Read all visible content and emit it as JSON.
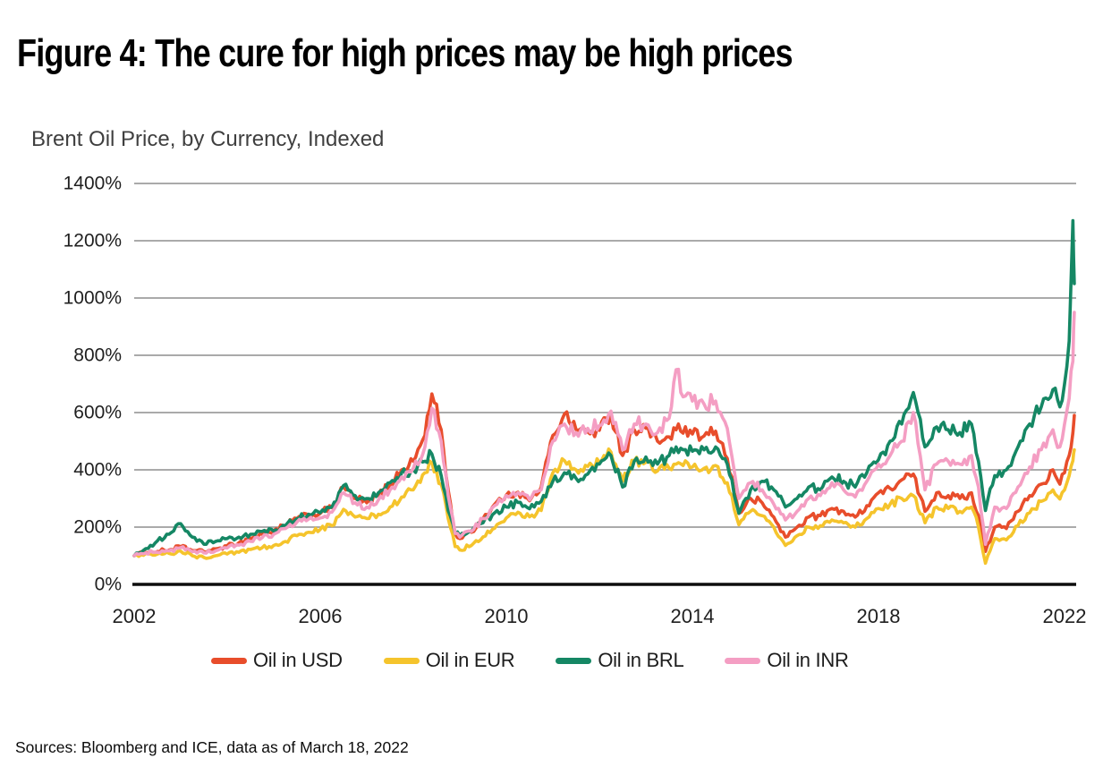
{
  "figure_title": "Figure 4: The cure for high prices may be high prices",
  "sources_line": "Sources: Bloomberg and ICE, data as of March 18, 2022",
  "colors": {
    "usd": "#E84D2B",
    "eur": "#F5C42C",
    "brl": "#158764",
    "inr": "#F49EC3",
    "gridline": "#9e9e9e",
    "axis": "#0d0d0d",
    "tick_text": "#1f1f1f"
  },
  "legend": [
    {
      "label": "Oil in USD",
      "color": "#E84D2B"
    },
    {
      "label": "Oil in EUR",
      "color": "#F5C42C"
    },
    {
      "label": "Oil in BRL",
      "color": "#158764"
    },
    {
      "label": "Oil in INR",
      "color": "#F49EC3"
    }
  ],
  "chart_data": {
    "type": "line",
    "title": "Brent Oil Price, by Currency, Indexed",
    "xlabel": "",
    "ylabel": "",
    "grid": "horizontal",
    "legend_position": "bottom",
    "xlim": [
      2002,
      2022.25
    ],
    "ylim": [
      0,
      1400
    ],
    "y_ticks": [
      {
        "value": 0,
        "label": "0%"
      },
      {
        "value": 200,
        "label": "200%"
      },
      {
        "value": 400,
        "label": "400%"
      },
      {
        "value": 600,
        "label": "600%"
      },
      {
        "value": 800,
        "label": "800%"
      },
      {
        "value": 1000,
        "label": "1000%"
      },
      {
        "value": 1200,
        "label": "1200%"
      },
      {
        "value": 1400,
        "label": "1400%"
      }
    ],
    "x_ticks": [
      {
        "value": 2002,
        "label": "2002"
      },
      {
        "value": 2006,
        "label": "2006"
      },
      {
        "value": 2010,
        "label": "2010"
      },
      {
        "value": 2014,
        "label": "2014"
      },
      {
        "value": 2018,
        "label": "2018"
      },
      {
        "value": 2022,
        "label": "2022"
      }
    ],
    "x": [
      2002.0,
      2002.25,
      2002.5,
      2002.75,
      2003.0,
      2003.25,
      2003.5,
      2003.75,
      2004.0,
      2004.25,
      2004.5,
      2004.75,
      2005.0,
      2005.25,
      2005.5,
      2005.75,
      2006.0,
      2006.25,
      2006.5,
      2006.75,
      2007.0,
      2007.25,
      2007.5,
      2007.75,
      2008.0,
      2008.25,
      2008.4,
      2008.6,
      2008.75,
      2008.9,
      2009.0,
      2009.25,
      2009.5,
      2009.75,
      2010.0,
      2010.25,
      2010.5,
      2010.75,
      2011.0,
      2011.25,
      2011.5,
      2011.75,
      2012.0,
      2012.25,
      2012.5,
      2012.75,
      2013.0,
      2013.25,
      2013.5,
      2013.65,
      2013.8,
      2014.0,
      2014.25,
      2014.5,
      2014.75,
      2015.0,
      2015.25,
      2015.5,
      2015.75,
      2016.0,
      2016.25,
      2016.5,
      2016.75,
      2017.0,
      2017.25,
      2017.5,
      2017.75,
      2018.0,
      2018.25,
      2018.5,
      2018.75,
      2019.0,
      2019.25,
      2019.5,
      2019.75,
      2020.0,
      2020.15,
      2020.3,
      2020.5,
      2020.75,
      2021.0,
      2021.25,
      2021.5,
      2021.75,
      2021.9,
      2022.0,
      2022.1,
      2022.18,
      2022.21
    ],
    "series": [
      {
        "name": "Oil in USD",
        "color": "#E84D2B",
        "values": [
          100,
          112,
          115,
          120,
          132,
          118,
          114,
          124,
          135,
          145,
          160,
          175,
          188,
          205,
          230,
          240,
          248,
          268,
          340,
          300,
          285,
          310,
          350,
          400,
          430,
          520,
          665,
          540,
          330,
          178,
          160,
          182,
          230,
          280,
          312,
          322,
          292,
          340,
          520,
          595,
          540,
          532,
          538,
          595,
          450,
          540,
          545,
          500,
          515,
          540,
          528,
          525,
          518,
          535,
          440,
          248,
          300,
          285,
          235,
          165,
          200,
          235,
          240,
          265,
          255,
          235,
          275,
          320,
          335,
          365,
          385,
          255,
          320,
          310,
          300,
          320,
          240,
          115,
          200,
          195,
          255,
          310,
          350,
          400,
          350,
          390,
          450,
          530,
          590
        ]
      },
      {
        "name": "Oil in EUR",
        "color": "#F5C42C",
        "values": [
          100,
          108,
          106,
          108,
          116,
          100,
          94,
          100,
          106,
          112,
          122,
          128,
          136,
          150,
          170,
          182,
          192,
          205,
          262,
          235,
          230,
          245,
          270,
          305,
          330,
          390,
          425,
          350,
          230,
          132,
          120,
          136,
          166,
          196,
          232,
          252,
          236,
          258,
          390,
          432,
          400,
          412,
          426,
          462,
          360,
          432,
          426,
          396,
          406,
          420,
          415,
          410,
          405,
          415,
          355,
          208,
          255,
          240,
          200,
          136,
          170,
          200,
          205,
          225,
          215,
          200,
          230,
          265,
          280,
          300,
          310,
          215,
          270,
          265,
          255,
          270,
          200,
          74,
          160,
          155,
          205,
          250,
          290,
          330,
          298,
          330,
          380,
          432,
          470
        ]
      },
      {
        "name": "Oil in BRL",
        "color": "#158764",
        "values": [
          100,
          125,
          152,
          175,
          212,
          165,
          140,
          150,
          160,
          165,
          175,
          185,
          186,
          205,
          230,
          245,
          250,
          270,
          345,
          310,
          300,
          320,
          355,
          390,
          400,
          430,
          455,
          380,
          258,
          178,
          170,
          186,
          215,
          250,
          270,
          286,
          264,
          290,
          360,
          390,
          370,
          385,
          420,
          450,
          340,
          430,
          445,
          420,
          450,
          480,
          470,
          465,
          470,
          480,
          420,
          248,
          330,
          360,
          330,
          270,
          300,
          340,
          330,
          375,
          360,
          340,
          390,
          435,
          500,
          560,
          670,
          480,
          550,
          540,
          530,
          560,
          430,
          258,
          380,
          400,
          480,
          560,
          620,
          680,
          620,
          700,
          850,
          1270,
          1050
        ]
      },
      {
        "name": "Oil in INR",
        "color": "#F49EC3",
        "values": [
          100,
          110,
          112,
          117,
          128,
          114,
          110,
          117,
          127,
          137,
          150,
          163,
          175,
          195,
          218,
          228,
          232,
          252,
          320,
          285,
          270,
          295,
          330,
          375,
          405,
          480,
          615,
          500,
          310,
          178,
          165,
          185,
          230,
          275,
          310,
          320,
          295,
          330,
          500,
          560,
          530,
          545,
          555,
          605,
          470,
          560,
          560,
          530,
          580,
          750,
          655,
          640,
          630,
          640,
          545,
          300,
          355,
          330,
          280,
          225,
          255,
          300,
          310,
          355,
          330,
          305,
          360,
          420,
          450,
          500,
          600,
          330,
          420,
          430,
          420,
          450,
          340,
          140,
          270,
          265,
          340,
          410,
          470,
          540,
          480,
          560,
          650,
          780,
          950
        ]
      }
    ]
  }
}
